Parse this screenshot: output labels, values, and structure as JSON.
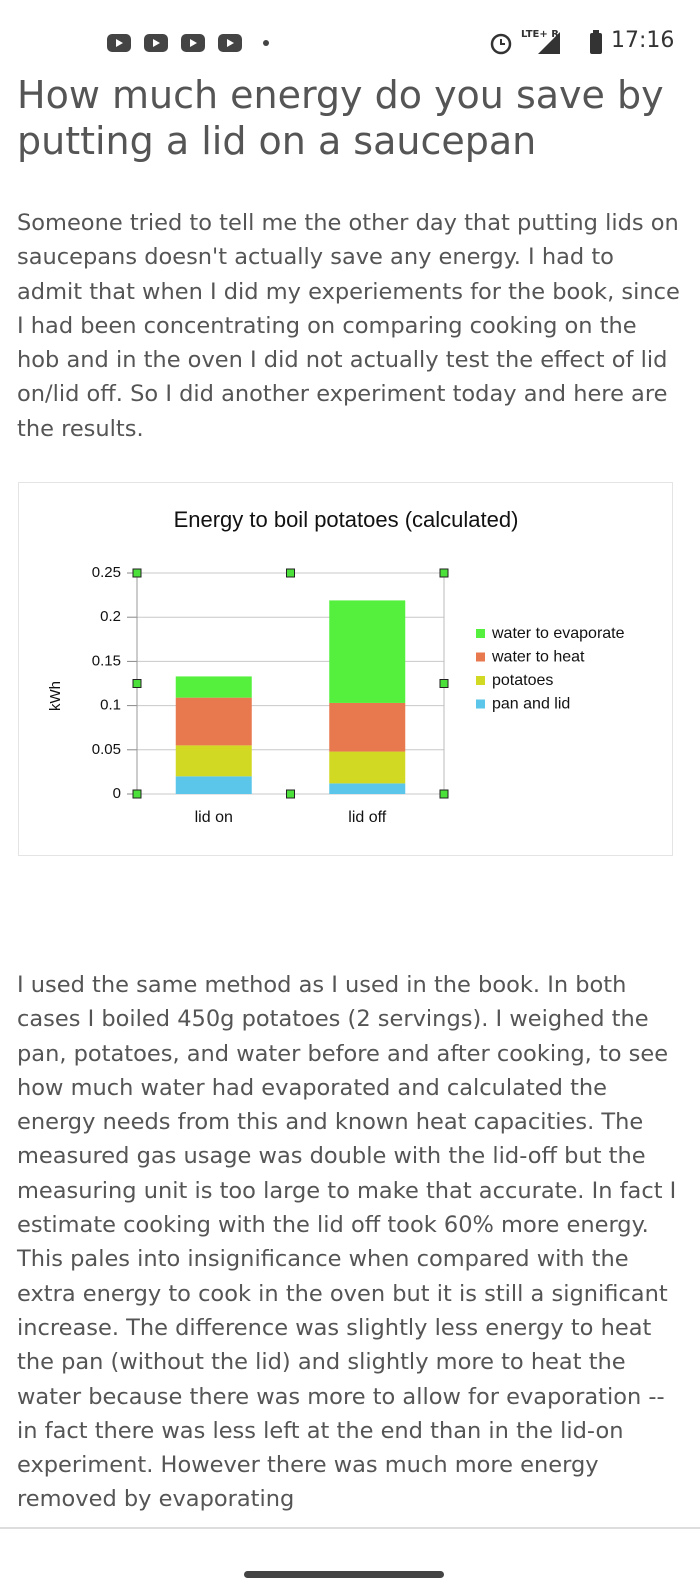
{
  "status_bar": {
    "network": "LTE+ R",
    "time": "17:16"
  },
  "article": {
    "title": "How much energy do you save by putting a lid on a saucepan",
    "paragraphs": [
      "Someone tried to tell me the other day that putting lids on saucepans doesn't actually save any energy. I had to admit that when I did my experiements for the book, since I had been concentrating on comparing cooking on the hob and in the oven I did not actually test the effect of lid on/lid off. So I did another experiment today and here are the results.",
      "I used the same method as I used in the book. In both cases I boiled 450g potatoes (2 servings). I weighed the pan, potatoes, and water before and after cooking, to see how much water had evaporated and calculated the energy needs from this and known heat capacities. The measured gas usage was double with the lid-off but the measuring unit is too large to make that accurate. In fact I estimate cooking with the lid off took 60% more energy. This pales into insignificance when compared with the extra energy to cook in the oven but it is still a significant increase. The difference was slightly less energy to heat the pan (without the lid) and slightly more to heat the water because there was more to allow for evaporation -- in fact there was less left at the end than in the lid-on experiment. However there was much more energy removed by evaporating"
    ]
  },
  "chart_data": {
    "type": "stacked_bar",
    "title": "Energy to boil potatoes (calculated)",
    "y_label": "kWh",
    "categories": [
      "lid on",
      "lid off"
    ],
    "series": [
      {
        "name": "pan and lid",
        "color": "#5bc6ea",
        "values": [
          0.02,
          0.012
        ]
      },
      {
        "name": "potatoes",
        "color": "#d2d923",
        "values": [
          0.035,
          0.036
        ]
      },
      {
        "name": "water to heat",
        "color": "#e8784e",
        "values": [
          0.054,
          0.055
        ]
      },
      {
        "name": "water to evaporate",
        "color": "#55f03e",
        "values": [
          0.024,
          0.116
        ]
      }
    ],
    "ylim": [
      0,
      0.25
    ],
    "yticks": [
      0,
      0.05,
      0.1,
      0.15,
      0.2,
      0.25
    ],
    "grid": true,
    "legend": "right"
  }
}
